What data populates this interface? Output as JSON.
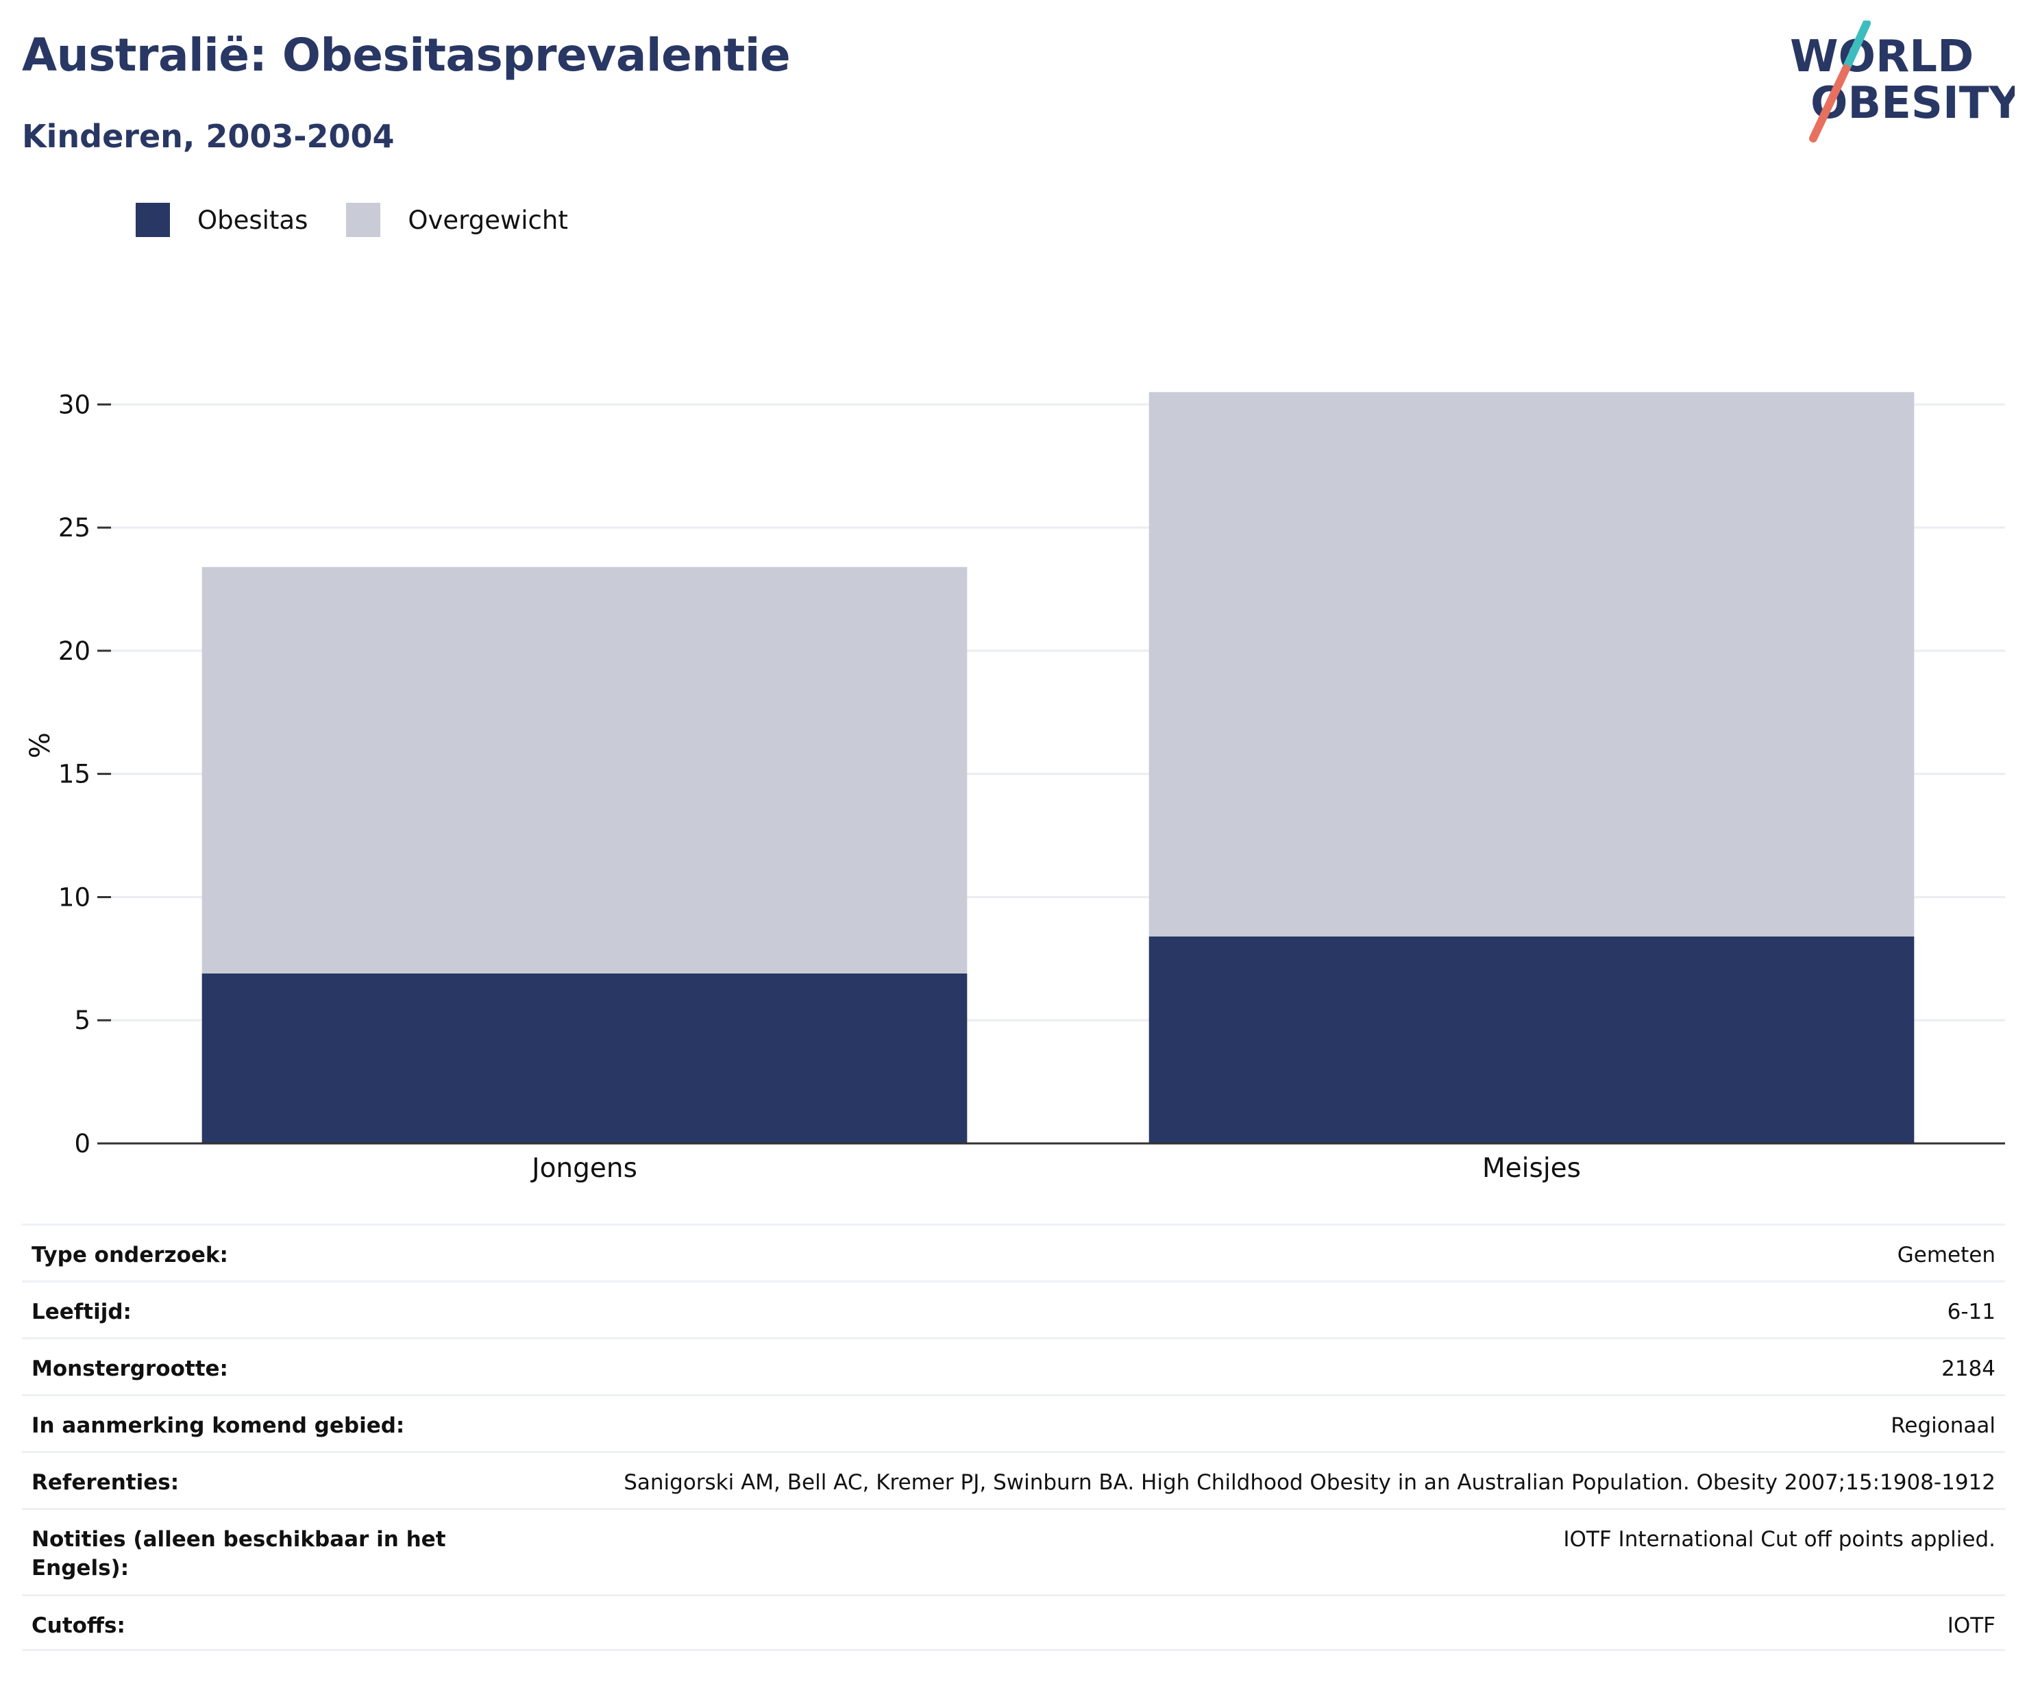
{
  "header": {
    "title": "Australië: Obesitasprevalentie",
    "subtitle": "Kinderen, 2003-2004"
  },
  "logo": {
    "line1": "WORLD",
    "line2": "OBESITY",
    "text_color": "#293764",
    "slash_colors": [
      "#3dbdbd",
      "#e8705f"
    ]
  },
  "legend": {
    "items": [
      {
        "label": "Obesitas",
        "color": "#293764"
      },
      {
        "label": "Overgewicht",
        "color": "#c9cbd6"
      }
    ]
  },
  "chart_data": {
    "type": "bar",
    "stacked": true,
    "categories": [
      "Jongens",
      "Meisjes"
    ],
    "series": [
      {
        "name": "Obesitas",
        "color": "#293764",
        "values": [
          6.9,
          8.4
        ]
      },
      {
        "name": "Overgewicht",
        "color": "#c9cbd6",
        "values": [
          16.5,
          22.1
        ]
      }
    ],
    "ylabel": "%",
    "ylim": [
      0,
      30
    ],
    "yticks": [
      "0",
      "5",
      "10",
      "15",
      "20",
      "25",
      "30"
    ],
    "grid": true,
    "legend_position": "top-left"
  },
  "info": {
    "rows": [
      {
        "key": "Type onderzoek:",
        "value": "Gemeten"
      },
      {
        "key": "Leeftijd:",
        "value": "6-11"
      },
      {
        "key": "Monstergrootte:",
        "value": "2184"
      },
      {
        "key": "In aanmerking komend gebied:",
        "value": "Regionaal"
      },
      {
        "key": "Referenties:",
        "value": "Sanigorski AM, Bell AC, Kremer PJ, Swinburn BA. High Childhood Obesity in an Australian Population. Obesity 2007;15:1908-1912"
      },
      {
        "key": "Notities (alleen beschikbaar in het Engels):",
        "value": "IOTF International Cut off points applied."
      },
      {
        "key": "Cutoffs:",
        "value": "IOTF"
      }
    ]
  }
}
